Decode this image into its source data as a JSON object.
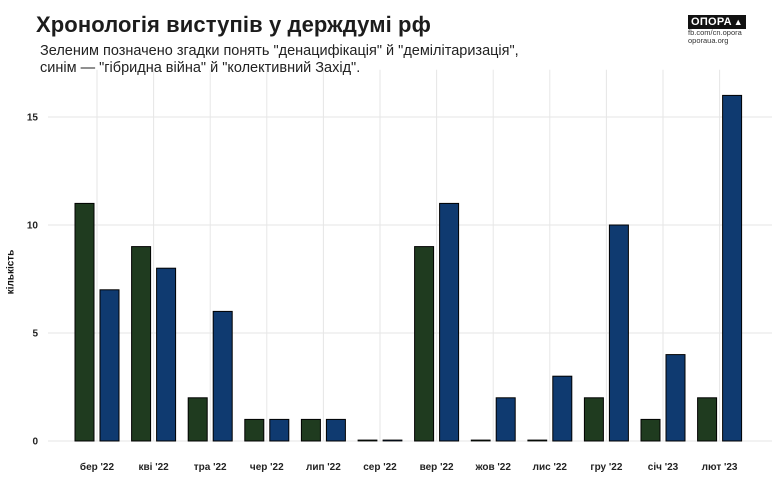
{
  "header": {
    "title": "Хронологія виступів у держдумі рф",
    "subtitle_line1": "Зеленим позначено згадки понять \"денацифікація\" й \"демілітаризація\",",
    "subtitle_line2": "синім — \"гібридна війна\" й \"колективний Захід\"."
  },
  "brand": {
    "logo_text": "ОПОРА",
    "line1": "fb.com/cn.opora",
    "line2": "oporaua.org"
  },
  "colors": {
    "green": "#1f3b1f",
    "blue": "#0f3a70",
    "grid": "#e6e6e6"
  },
  "chart_data": {
    "type": "bar",
    "ylabel": "кількість",
    "ylim": [
      0,
      17
    ],
    "yticks": [
      0,
      5,
      10,
      15
    ],
    "grid": true,
    "categories": [
      "бер '22",
      "кві '22",
      "тра '22",
      "чер '22",
      "лип '22",
      "сер '22",
      "вер '22",
      "жов '22",
      "лис '22",
      "гру '22",
      "січ '23",
      "лют '23"
    ],
    "series": [
      {
        "values": [
          11,
          9,
          2,
          1,
          1,
          0,
          9,
          0,
          0,
          2,
          1,
          2
        ]
      },
      {
        "values": [
          7,
          8,
          6,
          1,
          1,
          0,
          11,
          2,
          3,
          10,
          4,
          16
        ]
      }
    ]
  }
}
